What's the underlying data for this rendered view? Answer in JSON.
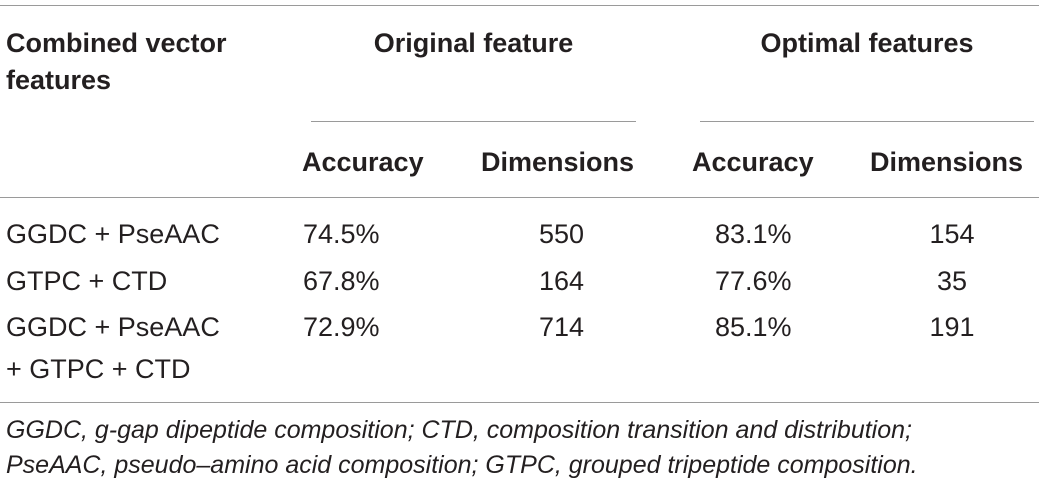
{
  "table": {
    "header": {
      "col1": [
        "Combined vector",
        "features"
      ],
      "group_original": "Original feature",
      "group_optimal": "Optimal features",
      "sub": [
        "Accuracy",
        "Dimensions",
        "Accuracy",
        "Dimensions"
      ]
    },
    "rows": [
      {
        "label": [
          "GGDC + PseAAC"
        ],
        "orig_acc": "74.5%",
        "orig_dim": "550",
        "opt_acc": "83.1%",
        "opt_dim": "154"
      },
      {
        "label": [
          "GTPC + CTD"
        ],
        "orig_acc": "67.8%",
        "orig_dim": "164",
        "opt_acc": "77.6%",
        "opt_dim": "35"
      },
      {
        "label": [
          "GGDC + PseAAC",
          "+ GTPC + CTD"
        ],
        "orig_acc": "72.9%",
        "orig_dim": "714",
        "opt_acc": "85.1%",
        "opt_dim": "191"
      }
    ],
    "footnote": [
      "GGDC, g-gap dipeptide composition; CTD, composition transition and distribution;",
      "PseAAC, pseudo–amino acid composition; GTPC, grouped tripeptide composition."
    ]
  }
}
